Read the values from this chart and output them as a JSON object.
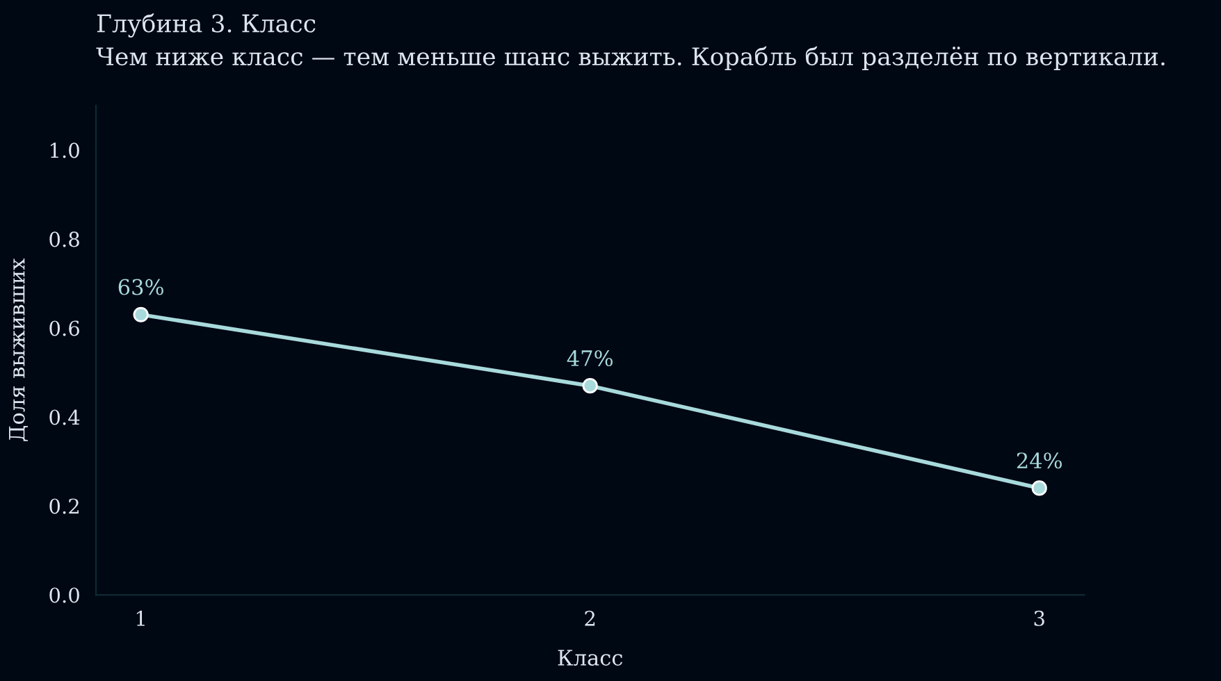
{
  "chart_data": {
    "type": "line",
    "title": "Глубина 3. Класс",
    "subtitle": "Чем ниже класс — тем меньше шанс выжить. Корабль был разделён по вертикали.",
    "xlabel": "Класс",
    "ylabel": "Доля выживших",
    "categories": [
      "1",
      "2",
      "3"
    ],
    "series": [
      {
        "color": "#a8dadc",
        "values": [
          0.63,
          0.47,
          0.24
        ],
        "value_labels": [
          "63%",
          "47%",
          "24%"
        ]
      }
    ],
    "ylim": [
      0,
      1.1
    ],
    "yticks": [
      {
        "value": 0,
        "label": "0.0"
      },
      0.2,
      0.4,
      0.6,
      0.8,
      {
        "value": 1,
        "label": "1.0"
      }
    ],
    "grid": false,
    "marker": "circle",
    "line_style": "solid"
  }
}
